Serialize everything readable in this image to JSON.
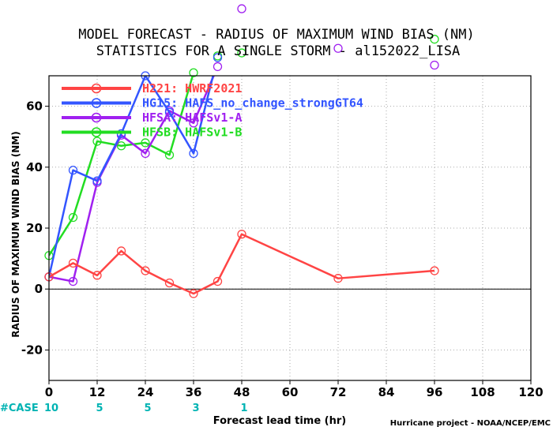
{
  "chart_data": {
    "type": "line",
    "title": "MODEL FORECAST - RADIUS OF MAXIMUM WIND BIAS (NM)",
    "subtitle": "STATISTICS FOR A SINGLE STORM - al152022_LISA",
    "xlabel": "Forecast lead time (hr)",
    "ylabel": "RADIUS OF MAXIMUM WIND BIAS (NM)",
    "xlim": [
      0,
      120
    ],
    "ylim": [
      -30,
      70
    ],
    "xticks": [
      0,
      12,
      24,
      36,
      48,
      60,
      72,
      84,
      96,
      108,
      120
    ],
    "yticks": [
      -20,
      0,
      20,
      40,
      60
    ],
    "grid": true,
    "legend_position": "top-left",
    "series": [
      {
        "name": "H221: HWRF2021",
        "color": "#ff4444",
        "x": [
          0,
          6,
          12,
          18,
          24,
          30,
          36,
          42,
          48,
          72,
          96
        ],
        "y": [
          4,
          8.5,
          4.5,
          12.5,
          6,
          2,
          -1.5,
          2.5,
          18,
          3.5,
          6
        ]
      },
      {
        "name": "HG15: HAFS_no_change_strongGT64",
        "color": "#3355ff",
        "x": [
          0,
          6,
          12,
          18,
          24,
          30,
          36,
          42
        ],
        "y": [
          4,
          39,
          35.5,
          51,
          70,
          58,
          44.5,
          76
        ]
      },
      {
        "name": "HFSA: HAFSv1-A",
        "color": "#a020f0",
        "x": [
          0,
          6,
          12,
          18,
          24,
          30,
          36,
          42,
          48,
          72,
          96
        ],
        "y": [
          4,
          2.5,
          35,
          50.5,
          44.5,
          58.5,
          54.5,
          73,
          92,
          79,
          73.5
        ]
      },
      {
        "name": "HFSB: HAFSv1-B",
        "color": "#22dd22",
        "x": [
          0,
          6,
          12,
          18,
          24,
          30,
          36,
          42,
          48,
          96
        ],
        "y": [
          11,
          23.5,
          48.5,
          47,
          48,
          44,
          71,
          76.5,
          77.5,
          82
        ]
      }
    ],
    "cases_label": "#CASE",
    "cases": [
      {
        "x": 0,
        "n": "10"
      },
      {
        "x": 12,
        "n": "5"
      },
      {
        "x": 24,
        "n": "5"
      },
      {
        "x": 36,
        "n": "3"
      },
      {
        "x": 48,
        "n": "1"
      }
    ],
    "credit": "Hurricane project - NOAA/NCEP/EMC"
  }
}
